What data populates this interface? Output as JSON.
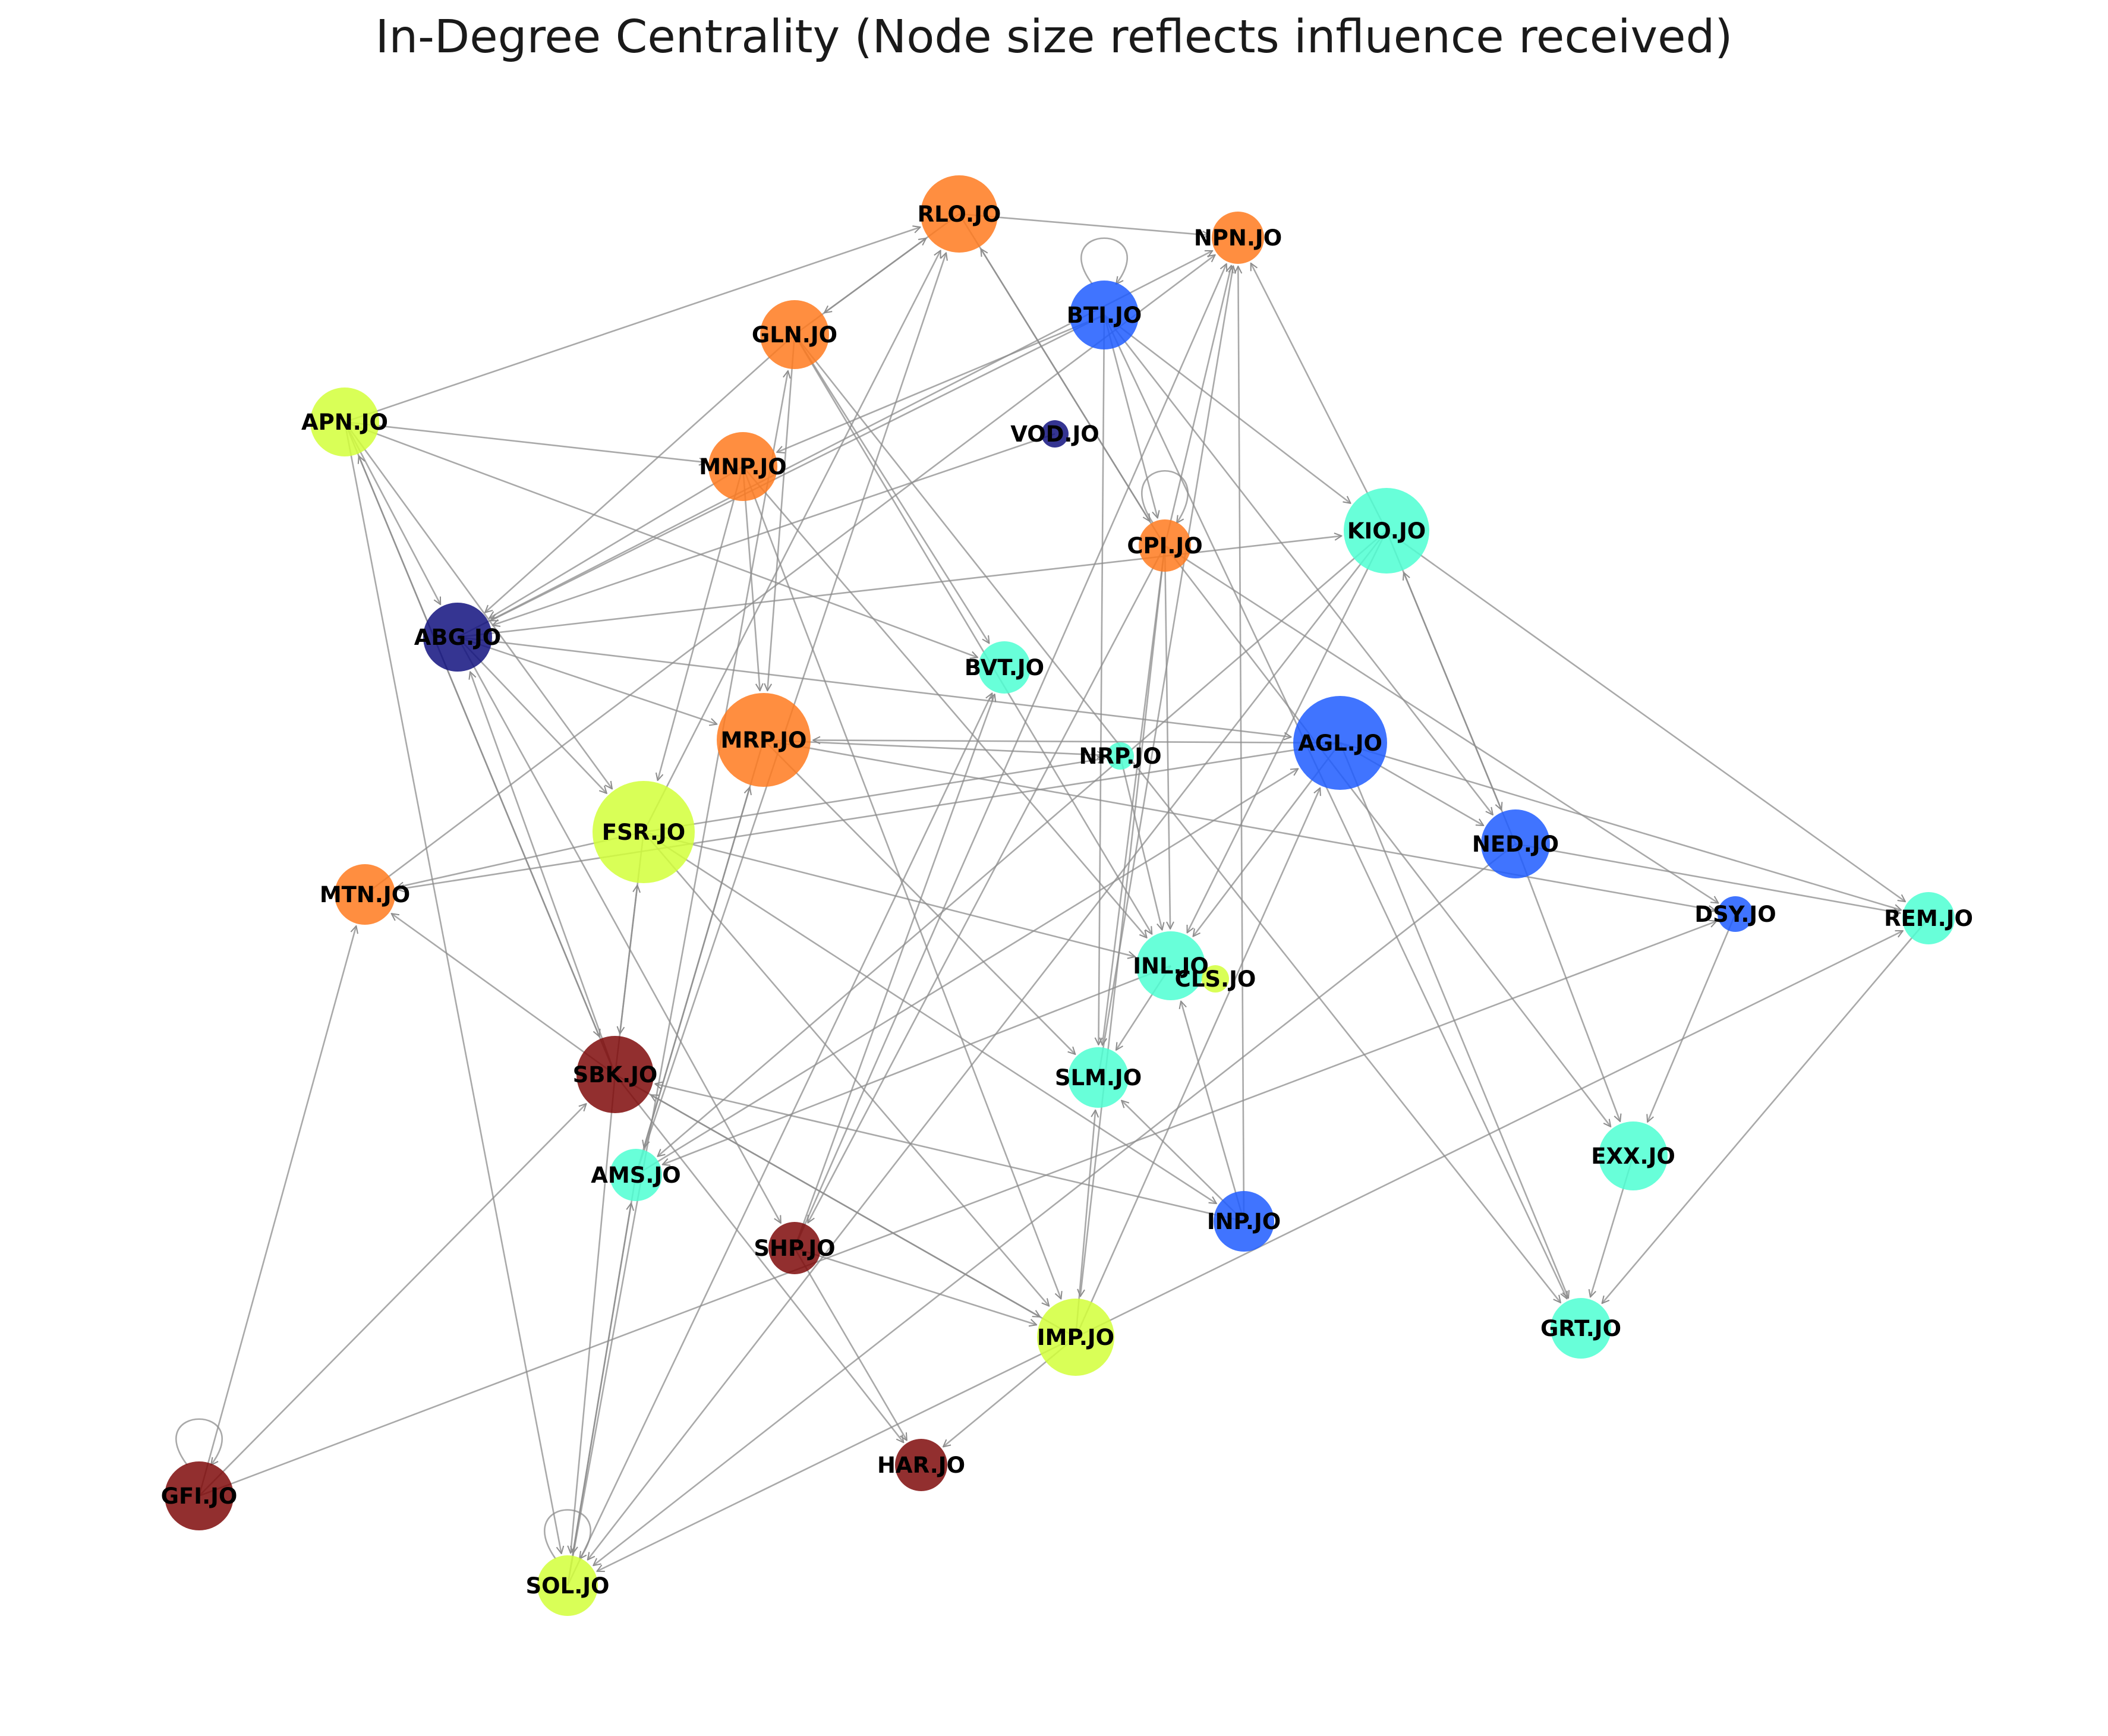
{
  "title": "In-Degree Centrality (Node size reflects influence received)",
  "colors": {
    "edge": "#8c8c8c",
    "orange": "#ff7a1f",
    "lime": "#d2ff3a",
    "blue": "#1f5cff",
    "aqua": "#4dffd2",
    "navy": "#12127f",
    "maroon": "#7f0a0a"
  },
  "chart_data": {
    "type": "network",
    "directed": true,
    "size_metric": "in-degree centrality",
    "nodes": [
      {
        "id": "RLO.JO",
        "color": "orange",
        "in_degree": 7
      },
      {
        "id": "NPN.JO",
        "color": "orange",
        "in_degree": 4
      },
      {
        "id": "BTI.JO",
        "color": "blue",
        "in_degree": 6
      },
      {
        "id": "GLN.JO",
        "color": "orange",
        "in_degree": 6
      },
      {
        "id": "APN.JO",
        "color": "lime",
        "in_degree": 6
      },
      {
        "id": "VOD.JO",
        "color": "navy",
        "in_degree": 1
      },
      {
        "id": "MNP.JO",
        "color": "orange",
        "in_degree": 6
      },
      {
        "id": "CPI.JO",
        "color": "orange",
        "in_degree": 4
      },
      {
        "id": "KIO.JO",
        "color": "aqua",
        "in_degree": 8
      },
      {
        "id": "ABG.JO",
        "color": "navy",
        "in_degree": 6
      },
      {
        "id": "BVT.JO",
        "color": "aqua",
        "in_degree": 4
      },
      {
        "id": "MRP.JO",
        "color": "orange",
        "in_degree": 9
      },
      {
        "id": "NRP.JO",
        "color": "aqua",
        "in_degree": 1
      },
      {
        "id": "AGL.JO",
        "color": "blue",
        "in_degree": 9
      },
      {
        "id": "FSR.JO",
        "color": "lime",
        "in_degree": 10
      },
      {
        "id": "NED.JO",
        "color": "blue",
        "in_degree": 6
      },
      {
        "id": "MTN.JO",
        "color": "orange",
        "in_degree": 5
      },
      {
        "id": "DSY.JO",
        "color": "blue",
        "in_degree": 2
      },
      {
        "id": "REM.JO",
        "color": "aqua",
        "in_degree": 4
      },
      {
        "id": "INL.JO",
        "color": "aqua",
        "in_degree": 6
      },
      {
        "id": "CLS.JO",
        "color": "lime",
        "in_degree": 1
      },
      {
        "id": "SBK.JO",
        "color": "maroon",
        "in_degree": 7
      },
      {
        "id": "SLM.JO",
        "color": "aqua",
        "in_degree": 5
      },
      {
        "id": "AMS.JO",
        "color": "aqua",
        "in_degree": 4
      },
      {
        "id": "EXX.JO",
        "color": "aqua",
        "in_degree": 6
      },
      {
        "id": "INP.JO",
        "color": "blue",
        "in_degree": 5
      },
      {
        "id": "SHP.JO",
        "color": "maroon",
        "in_degree": 4
      },
      {
        "id": "IMP.JO",
        "color": "lime",
        "in_degree": 7
      },
      {
        "id": "GRT.JO",
        "color": "aqua",
        "in_degree": 5
      },
      {
        "id": "HAR.JO",
        "color": "maroon",
        "in_degree": 4
      },
      {
        "id": "GFI.JO",
        "color": "maroon",
        "in_degree": 6
      },
      {
        "id": "SOL.JO",
        "color": "lime",
        "in_degree": 5
      }
    ],
    "edges": [
      [
        "RLO.JO",
        "NPN.JO"
      ],
      [
        "APN.JO",
        "RLO.JO"
      ],
      [
        "GLN.JO",
        "RLO.JO"
      ],
      [
        "RLO.JO",
        "GLN.JO"
      ],
      [
        "RLO.JO",
        "CPI.JO"
      ],
      [
        "CPI.JO",
        "RLO.JO"
      ],
      [
        "FSR.JO",
        "RLO.JO"
      ],
      [
        "AMS.JO",
        "RLO.JO"
      ],
      [
        "BTI.JO",
        "BTI.JO"
      ],
      [
        "CPI.JO",
        "CPI.JO"
      ],
      [
        "GFI.JO",
        "GFI.JO"
      ],
      [
        "SOL.JO",
        "SOL.JO"
      ],
      [
        "BTI.JO",
        "ABG.JO"
      ],
      [
        "BTI.JO",
        "MNP.JO"
      ],
      [
        "BTI.JO",
        "CPI.JO"
      ],
      [
        "BTI.JO",
        "NED.JO"
      ],
      [
        "BTI.JO",
        "KIO.JO"
      ],
      [
        "BTI.JO",
        "GRT.JO"
      ],
      [
        "BTI.JO",
        "SLM.JO"
      ],
      [
        "KIO.JO",
        "NPN.JO"
      ],
      [
        "ABG.JO",
        "NPN.JO"
      ],
      [
        "MTN.JO",
        "NPN.JO"
      ],
      [
        "CPI.JO",
        "NPN.JO"
      ],
      [
        "INP.JO",
        "NPN.JO"
      ],
      [
        "SHP.JO",
        "NPN.JO"
      ],
      [
        "GLN.JO",
        "ABG.JO"
      ],
      [
        "GLN.JO",
        "MRP.JO"
      ],
      [
        "GLN.JO",
        "INL.JO"
      ],
      [
        "GLN.JO",
        "GRT.JO"
      ],
      [
        "GLN.JO",
        "BVT.JO"
      ],
      [
        "APN.JO",
        "MNP.JO"
      ],
      [
        "APN.JO",
        "ABG.JO"
      ],
      [
        "APN.JO",
        "FSR.JO"
      ],
      [
        "APN.JO",
        "SBK.JO"
      ],
      [
        "APN.JO",
        "SOL.JO"
      ],
      [
        "APN.JO",
        "BVT.JO"
      ],
      [
        "MNP.JO",
        "ABG.JO"
      ],
      [
        "MNP.JO",
        "FSR.JO"
      ],
      [
        "MNP.JO",
        "MRP.JO"
      ],
      [
        "MNP.JO",
        "IMP.JO"
      ],
      [
        "MNP.JO",
        "INL.JO"
      ],
      [
        "VOD.JO",
        "ABG.JO"
      ],
      [
        "ABG.JO",
        "KIO.JO"
      ],
      [
        "ABG.JO",
        "AGL.JO"
      ],
      [
        "ABG.JO",
        "MRP.JO"
      ],
      [
        "ABG.JO",
        "SHP.JO"
      ],
      [
        "ABG.JO",
        "FSR.JO"
      ],
      [
        "CPI.JO",
        "SHP.JO"
      ],
      [
        "CPI.JO",
        "SLM.JO"
      ],
      [
        "CPI.JO",
        "INL.JO"
      ],
      [
        "CPI.JO",
        "EXX.JO"
      ],
      [
        "CPI.JO",
        "IMP.JO"
      ],
      [
        "CPI.JO",
        "DSY.JO"
      ],
      [
        "KIO.JO",
        "NED.JO"
      ],
      [
        "NED.JO",
        "KIO.JO"
      ],
      [
        "KIO.JO",
        "REM.JO"
      ],
      [
        "KIO.JO",
        "INL.JO"
      ],
      [
        "KIO.JO",
        "AMS.JO"
      ],
      [
        "KIO.JO",
        "SOL.JO"
      ],
      [
        "MRP.JO",
        "NRP.JO"
      ],
      [
        "MRP.JO",
        "DSY.JO"
      ],
      [
        "MRP.JO",
        "SLM.JO"
      ],
      [
        "MRP.JO",
        "AMS.JO"
      ],
      [
        "AGL.JO",
        "MRP.JO"
      ],
      [
        "AGL.JO",
        "NED.JO"
      ],
      [
        "AGL.JO",
        "REM.JO"
      ],
      [
        "AGL.JO",
        "GRT.JO"
      ],
      [
        "AGL.JO",
        "MTN.JO"
      ],
      [
        "AGL.JO",
        "INL.JO"
      ],
      [
        "FSR.JO",
        "INP.JO"
      ],
      [
        "FSR.JO",
        "IMP.JO"
      ],
      [
        "FSR.JO",
        "INL.JO"
      ],
      [
        "FSR.JO",
        "MTN.JO"
      ],
      [
        "FSR.JO",
        "NRP.JO"
      ],
      [
        "FSR.JO",
        "SBK.JO"
      ],
      [
        "NED.JO",
        "EXX.JO"
      ],
      [
        "NED.JO",
        "SOL.JO"
      ],
      [
        "NED.JO",
        "REM.JO"
      ],
      [
        "DSY.JO",
        "EXX.JO"
      ],
      [
        "REM.JO",
        "GRT.JO"
      ],
      [
        "EXX.JO",
        "GRT.JO"
      ],
      [
        "SBK.JO",
        "MTN.JO"
      ],
      [
        "SBK.JO",
        "FSR.JO"
      ],
      [
        "SBK.JO",
        "ABG.JO"
      ],
      [
        "SBK.JO",
        "HAR.JO"
      ],
      [
        "SBK.JO",
        "IMP.JO"
      ],
      [
        "SBK.JO",
        "SOL.JO"
      ],
      [
        "SBK.JO",
        "APN.JO"
      ],
      [
        "IMP.JO",
        "SBK.JO"
      ],
      [
        "IMP.JO",
        "HAR.JO"
      ],
      [
        "IMP.JO",
        "REM.JO"
      ],
      [
        "IMP.JO",
        "SOL.JO"
      ],
      [
        "IMP.JO",
        "SLM.JO"
      ],
      [
        "IMP.JO",
        "AGL.JO"
      ],
      [
        "INP.JO",
        "SLM.JO"
      ],
      [
        "INP.JO",
        "INL.JO"
      ],
      [
        "INP.JO",
        "SBK.JO"
      ],
      [
        "SHP.JO",
        "HAR.JO"
      ],
      [
        "SHP.JO",
        "BVT.JO"
      ],
      [
        "SHP.JO",
        "IMP.JO"
      ],
      [
        "GFI.JO",
        "MTN.JO"
      ],
      [
        "GFI.JO",
        "SBK.JO"
      ],
      [
        "GFI.JO",
        "DSY.JO"
      ],
      [
        "AMS.JO",
        "SOL.JO"
      ],
      [
        "AMS.JO",
        "MRP.JO"
      ],
      [
        "AMS.JO",
        "AGL.JO"
      ],
      [
        "SOL.JO",
        "AMS.JO"
      ],
      [
        "SOL.JO",
        "GLN.JO"
      ],
      [
        "SOL.JO",
        "BVT.JO"
      ],
      [
        "INL.JO",
        "SLM.JO"
      ],
      [
        "INL.JO",
        "AMS.JO"
      ],
      [
        "SLM.JO",
        "NPN.JO"
      ],
      [
        "NRP.JO",
        "INL.JO"
      ]
    ]
  }
}
